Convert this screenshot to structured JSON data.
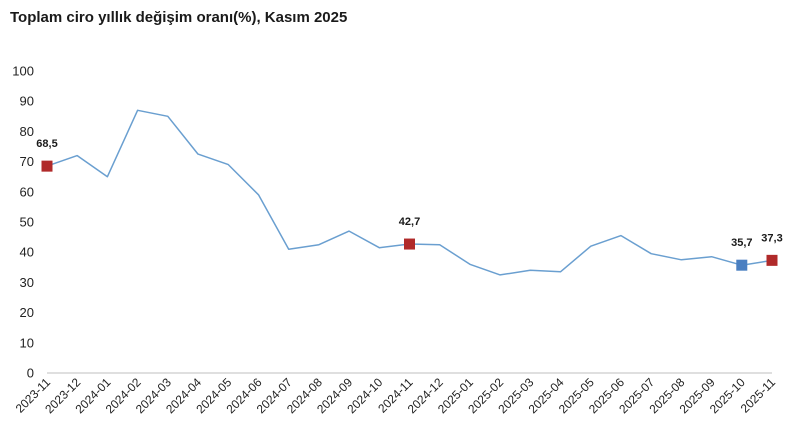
{
  "chart_data": {
    "type": "line",
    "title": "Toplam ciro yıllık değişim oranı(%), Kasım 2025",
    "xlabel": "",
    "ylabel": "",
    "ylim": [
      0,
      100
    ],
    "yticks": [
      0,
      10,
      20,
      30,
      40,
      50,
      60,
      70,
      80,
      90,
      100
    ],
    "grid": false,
    "categories": [
      "2023-11",
      "2023-12",
      "2024-01",
      "2024-02",
      "2024-03",
      "2024-04",
      "2024-05",
      "2024-06",
      "2024-07",
      "2024-08",
      "2024-09",
      "2024-10",
      "2024-11",
      "2024-12",
      "2025-01",
      "2025-02",
      "2025-03",
      "2025-04",
      "2025-05",
      "2025-06",
      "2025-07",
      "2025-08",
      "2025-09",
      "2025-10",
      "2025-11"
    ],
    "series": [
      {
        "values": [
          68.5,
          72.0,
          65.0,
          87.0,
          85.0,
          72.5,
          69.0,
          59.0,
          41.0,
          42.5,
          47.0,
          41.5,
          42.7,
          42.5,
          36.0,
          32.5,
          34.0,
          33.5,
          42.0,
          45.5,
          39.5,
          37.5,
          38.5,
          35.7,
          37.3
        ],
        "line_color": "#6a9fd0"
      }
    ],
    "highlighted_points": [
      {
        "category": "2023-11",
        "value": 68.5,
        "label": "68,5",
        "color": "#b02a2a"
      },
      {
        "category": "2024-11",
        "value": 42.7,
        "label": "42,7",
        "color": "#b02a2a"
      },
      {
        "category": "2025-10",
        "value": 35.7,
        "label": "35,7",
        "color": "#4a7fc1"
      },
      {
        "category": "2025-11",
        "value": 37.3,
        "label": "37,3",
        "color": "#b02a2a"
      }
    ]
  }
}
